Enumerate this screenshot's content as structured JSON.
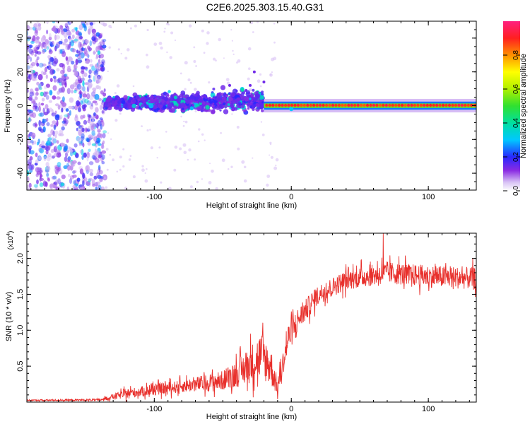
{
  "title": "C2E6.2025.303.15.40.G31",
  "colors": {
    "spectro_scatter": "#7d1fe8",
    "snr_line": "#e8302c",
    "axis": "#000000"
  },
  "chart_data": [
    {
      "type": "heatmap",
      "name": "spectrogram",
      "xlabel": "Height of straight line (km)",
      "ylabel": "Frequency (Hz)",
      "xlim": [
        -193,
        135
      ],
      "ylim": [
        -50,
        50
      ],
      "xticks": [
        -100,
        0,
        100
      ],
      "yticks": [
        -40,
        -20,
        0,
        20,
        40
      ],
      "xtick_labels": [
        "-100",
        "0",
        "100"
      ],
      "ytick_labels": [
        "-40",
        "-20",
        "0",
        "20",
        "40"
      ],
      "colorbar": {
        "label": "Normalized spectral amplitude",
        "range": [
          0,
          1
        ],
        "ticks": [
          0.0,
          0.2,
          0.4,
          0.6,
          0.8
        ],
        "tick_labels": [
          "0.0",
          "0.2",
          "0.4",
          "0.6",
          "0.8"
        ]
      },
      "regions": [
        {
          "x_range": [
            -193,
            -136
          ],
          "freq_range": [
            -50,
            50
          ],
          "amplitude": 0.1,
          "description": "noise"
        },
        {
          "x_range": [
            -136,
            -20
          ],
          "freq_center": 0,
          "freq_spread": 8,
          "amplitude": 0.15
        },
        {
          "x_range": [
            -20,
            135
          ],
          "freq_center": 0,
          "freq_spread": 2,
          "amplitude": 0.95
        }
      ]
    },
    {
      "type": "line",
      "name": "snr",
      "xlabel": "Height of straight line (km)",
      "ylabel": "SNR (10 * v/v)",
      "multiplier_label": "(x10",
      "multiplier_exp": "4",
      "multiplier_close": ")",
      "xlim": [
        -193,
        135
      ],
      "ylim": [
        0,
        23500
      ],
      "xticks": [
        -100,
        0,
        100
      ],
      "yticks": [
        5000,
        10000,
        15000,
        20000
      ],
      "xtick_labels": [
        "-100",
        "0",
        "100"
      ],
      "ytick_labels": [
        "0.5",
        "1.0",
        "1.5",
        "2.0"
      ],
      "envelope": [
        {
          "x": -193,
          "mean": 250,
          "amp": 150
        },
        {
          "x": -140,
          "mean": 300,
          "amp": 250
        },
        {
          "x": -120,
          "mean": 1200,
          "amp": 1200
        },
        {
          "x": -80,
          "mean": 2200,
          "amp": 1600
        },
        {
          "x": -50,
          "mean": 3000,
          "amp": 2500
        },
        {
          "x": -35,
          "mean": 4500,
          "amp": 4000
        },
        {
          "x": -22,
          "mean": 6500,
          "amp": 6000
        },
        {
          "x": -15,
          "mean": 5000,
          "amp": 5000
        },
        {
          "x": -10,
          "mean": 2000,
          "amp": 2000
        },
        {
          "x": -2,
          "mean": 9000,
          "amp": 4000
        },
        {
          "x": 5,
          "mean": 11500,
          "amp": 3000
        },
        {
          "x": 20,
          "mean": 15000,
          "amp": 2500
        },
        {
          "x": 40,
          "mean": 17000,
          "amp": 2500
        },
        {
          "x": 70,
          "mean": 18000,
          "amp": 2800
        },
        {
          "x": 100,
          "mean": 17500,
          "amp": 2800
        },
        {
          "x": 135,
          "mean": 17200,
          "amp": 2800
        }
      ],
      "peak": {
        "x": 67,
        "value": 23500
      }
    }
  ]
}
